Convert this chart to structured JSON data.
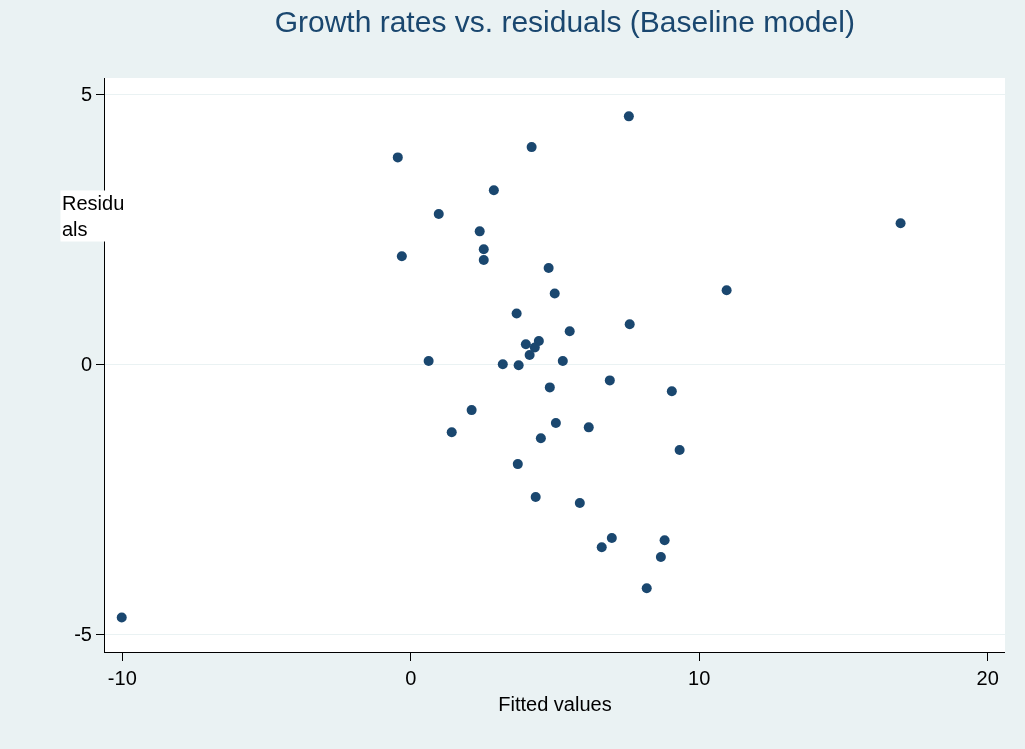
{
  "chart_data": {
    "type": "scatter",
    "title": "Growth rates vs. residuals (Baseline model)",
    "xlabel": "Fitted values",
    "ylabel": "Residu\nals",
    "x": [
      7.56,
      -0.45,
      4.19,
      2.88,
      0.97,
      2.39,
      2.53,
      2.53,
      -0.31,
      16.98,
      4.78,
      4.99,
      10.95,
      3.67,
      5.51,
      7.59,
      3.99,
      4.44,
      4.3,
      4.12,
      0.62,
      3.19,
      3.74,
      5.27,
      4.82,
      6.9,
      9.05,
      2.11,
      1.42,
      5.03,
      6.17,
      4.51,
      9.32,
      3.71,
      4.33,
      5.86,
      6.97,
      6.62,
      8.8,
      8.67,
      8.18,
      -10.02
    ],
    "series": [
      {
        "color": "#1a476f",
        "values": [
          4.59,
          3.83,
          4.02,
          3.22,
          2.78,
          2.46,
          2.13,
          1.93,
          2.0,
          2.61,
          1.78,
          1.31,
          1.37,
          0.94,
          0.61,
          0.74,
          0.37,
          0.43,
          0.31,
          0.17,
          0.06,
          0,
          -0.02,
          0.06,
          -0.43,
          -0.3,
          -0.5,
          -0.85,
          -1.26,
          -1.09,
          -1.17,
          -1.37,
          -1.59,
          -1.85,
          -2.46,
          -2.57,
          -3.22,
          -3.39,
          -3.26,
          -3.57,
          -4.15,
          -4.69
        ]
      }
    ],
    "xlim": [
      -10.6,
      20.6
    ],
    "ylim": [
      -5.33,
      5.3
    ],
    "xticks": [
      -10,
      0,
      10,
      20
    ],
    "yticks": [
      -5,
      0,
      5
    ],
    "grid": "y",
    "marker": "circle"
  }
}
